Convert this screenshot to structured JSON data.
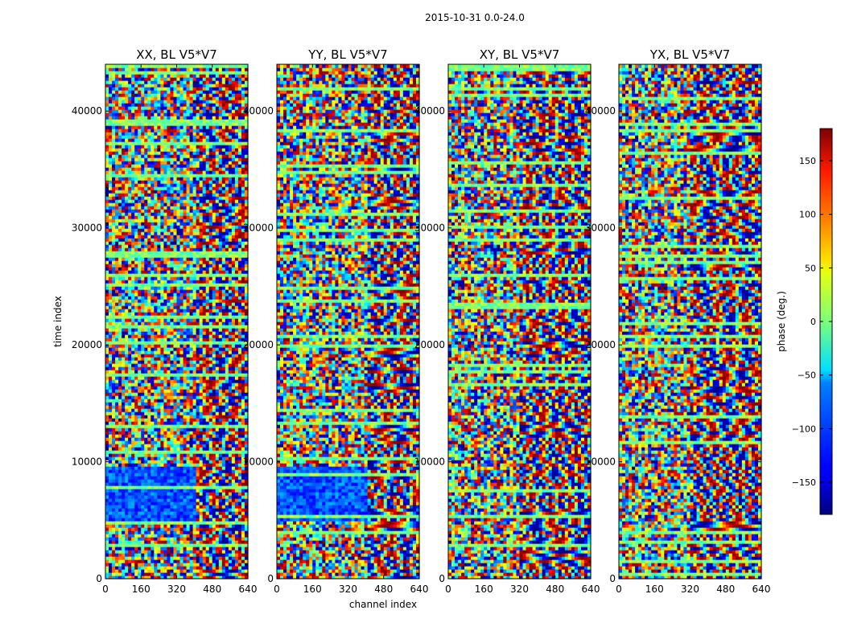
{
  "chart_data": {
    "type": "heatmap",
    "suptitle": "2015-10-31 0.0-24.0",
    "xlabel": "channel index",
    "ylabel": "time index",
    "xlim": [
      0,
      640
    ],
    "ylim": [
      0,
      44000
    ],
    "xticks": [
      0,
      160,
      320,
      480,
      640
    ],
    "yticks": [
      0,
      10000,
      20000,
      30000,
      40000
    ],
    "panels": [
      {
        "title": "XX, BL V5*V7",
        "channel_edge": 400,
        "low_block": [
          5000,
          9500
        ]
      },
      {
        "title": "YY, BL V5*V7",
        "channel_edge": 400,
        "low_block": [
          5000,
          9500
        ]
      },
      {
        "title": "XY, BL V5*V7",
        "channel_edge": 320,
        "low_block": null
      },
      {
        "title": "YX, BL V5*V7",
        "channel_edge": 320,
        "low_block": null
      }
    ],
    "colorbar": {
      "label": "phase (deg.)",
      "vmin": -180,
      "vmax": 180,
      "ticks": [
        -150,
        -100,
        -50,
        0,
        50,
        100,
        150
      ],
      "colormap": "jet"
    }
  }
}
